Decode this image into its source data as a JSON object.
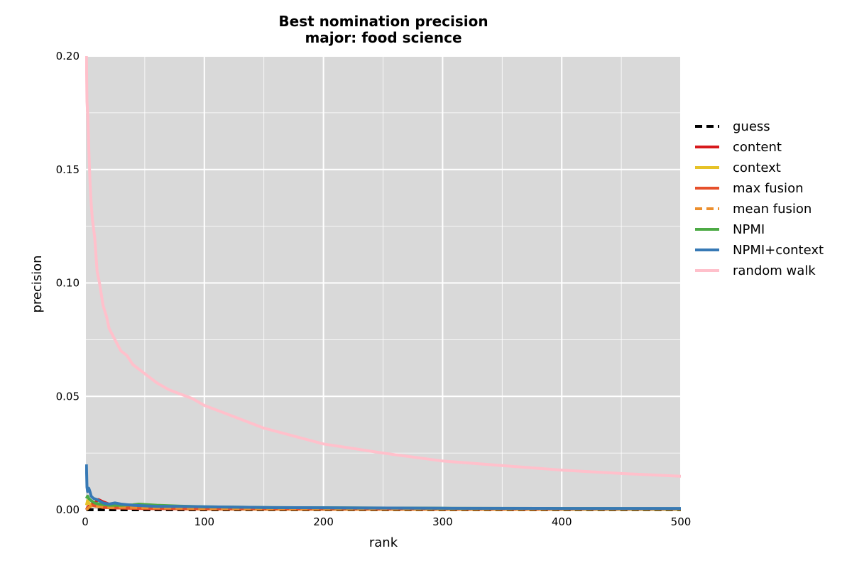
{
  "chart_data": {
    "type": "line",
    "title": "Best nomination precision",
    "subtitle": "major: food science",
    "xlabel": "rank",
    "ylabel": "precision",
    "xlim": [
      0,
      500
    ],
    "ylim": [
      0,
      0.2
    ],
    "xticks": [
      0,
      100,
      200,
      300,
      400,
      500
    ],
    "xtick_labels": [
      "0",
      "100",
      "200",
      "300",
      "400",
      "500"
    ],
    "yticks": [
      0,
      0.05,
      0.1,
      0.15,
      0.2
    ],
    "ytick_labels": [
      "0.00",
      "0.05",
      "0.10",
      "0.15",
      "0.20"
    ],
    "grid": true,
    "background": "#d9d9d9",
    "legend_placement": "outside right",
    "series": [
      {
        "name": "guess",
        "color": "#000000",
        "dash": true,
        "x": [
          1,
          5,
          10,
          20,
          50,
          100,
          200,
          300,
          400,
          500
        ],
        "y": [
          0,
          0,
          0,
          0,
          0,
          0,
          0,
          0,
          0,
          0
        ]
      },
      {
        "name": "content",
        "color": "#d7191c",
        "dash": false,
        "x": [
          1,
          2,
          3,
          5,
          8,
          11,
          15,
          20,
          30,
          50,
          100,
          200,
          300,
          400,
          500
        ],
        "y": [
          0,
          0.001,
          0.0015,
          0.0025,
          0.003,
          0.0045,
          0.0035,
          0.0025,
          0.002,
          0.0012,
          0.0008,
          0.0006,
          0.0005,
          0.0004,
          0.0004
        ]
      },
      {
        "name": "context",
        "color": "#e6c228",
        "dash": false,
        "x": [
          1,
          2,
          3,
          5,
          10,
          20,
          30,
          50,
          100,
          200,
          300,
          400,
          500
        ],
        "y": [
          0.002,
          0.004,
          0.003,
          0.002,
          0.0015,
          0.001,
          0.0008,
          0.0006,
          0.0003,
          0.0002,
          0.0002,
          0.0002,
          0.0002
        ]
      },
      {
        "name": "max fusion",
        "color": "#e6502b",
        "dash": false,
        "x": [
          1,
          3,
          6,
          10,
          15,
          25,
          50,
          100,
          200,
          300,
          400,
          500
        ],
        "y": [
          0,
          0.001,
          0.002,
          0.0015,
          0.001,
          0.0008,
          0.0005,
          0.0004,
          0.0003,
          0.0003,
          0.0003,
          0.0003
        ]
      },
      {
        "name": "mean fusion",
        "color": "#ec8f2e",
        "dash": true,
        "x": [
          1,
          3,
          6,
          10,
          20,
          30,
          50,
          100,
          200,
          300,
          400,
          500
        ],
        "y": [
          0,
          0.001,
          0.002,
          0.0015,
          0.001,
          0.0012,
          0.0009,
          0.0006,
          0.0005,
          0.0004,
          0.0004,
          0.0004
        ]
      },
      {
        "name": "NPMI",
        "color": "#4daa45",
        "dash": false,
        "x": [
          1,
          2,
          3,
          5,
          8,
          12,
          20,
          30,
          40,
          45,
          60,
          80,
          100,
          150,
          200,
          300,
          400,
          500
        ],
        "y": [
          0.005,
          0.006,
          0.005,
          0.004,
          0.003,
          0.0025,
          0.002,
          0.002,
          0.0022,
          0.0025,
          0.002,
          0.0016,
          0.0013,
          0.001,
          0.0009,
          0.0007,
          0.0006,
          0.0005
        ]
      },
      {
        "name": "NPMI+context",
        "color": "#3779b5",
        "dash": false,
        "x": [
          1,
          1.5,
          2,
          3,
          4,
          5,
          7,
          10,
          15,
          20,
          25,
          30,
          40,
          60,
          80,
          100,
          150,
          200,
          300,
          400,
          500
        ],
        "y": [
          0.02,
          0.01,
          0.008,
          0.0095,
          0.008,
          0.006,
          0.005,
          0.0045,
          0.003,
          0.0025,
          0.003,
          0.0025,
          0.002,
          0.0015,
          0.0015,
          0.0013,
          0.001,
          0.0009,
          0.0007,
          0.0006,
          0.0006
        ]
      },
      {
        "name": "random walk",
        "color": "#ffc0cb",
        "dash": false,
        "x": [
          1,
          1.5,
          2,
          3,
          4,
          5,
          6,
          8,
          10,
          12,
          15,
          18,
          20,
          25,
          30,
          35,
          40,
          45,
          50,
          60,
          70,
          80,
          90,
          100,
          120,
          150,
          200,
          250,
          300,
          350,
          400,
          450,
          500
        ],
        "y": [
          0.2,
          0.18,
          0.175,
          0.16,
          0.145,
          0.135,
          0.128,
          0.12,
          0.105,
          0.1,
          0.09,
          0.085,
          0.08,
          0.075,
          0.07,
          0.068,
          0.064,
          0.062,
          0.06,
          0.056,
          0.053,
          0.051,
          0.049,
          0.046,
          0.042,
          0.036,
          0.029,
          0.025,
          0.0215,
          0.0195,
          0.0175,
          0.016,
          0.0148
        ]
      }
    ]
  }
}
